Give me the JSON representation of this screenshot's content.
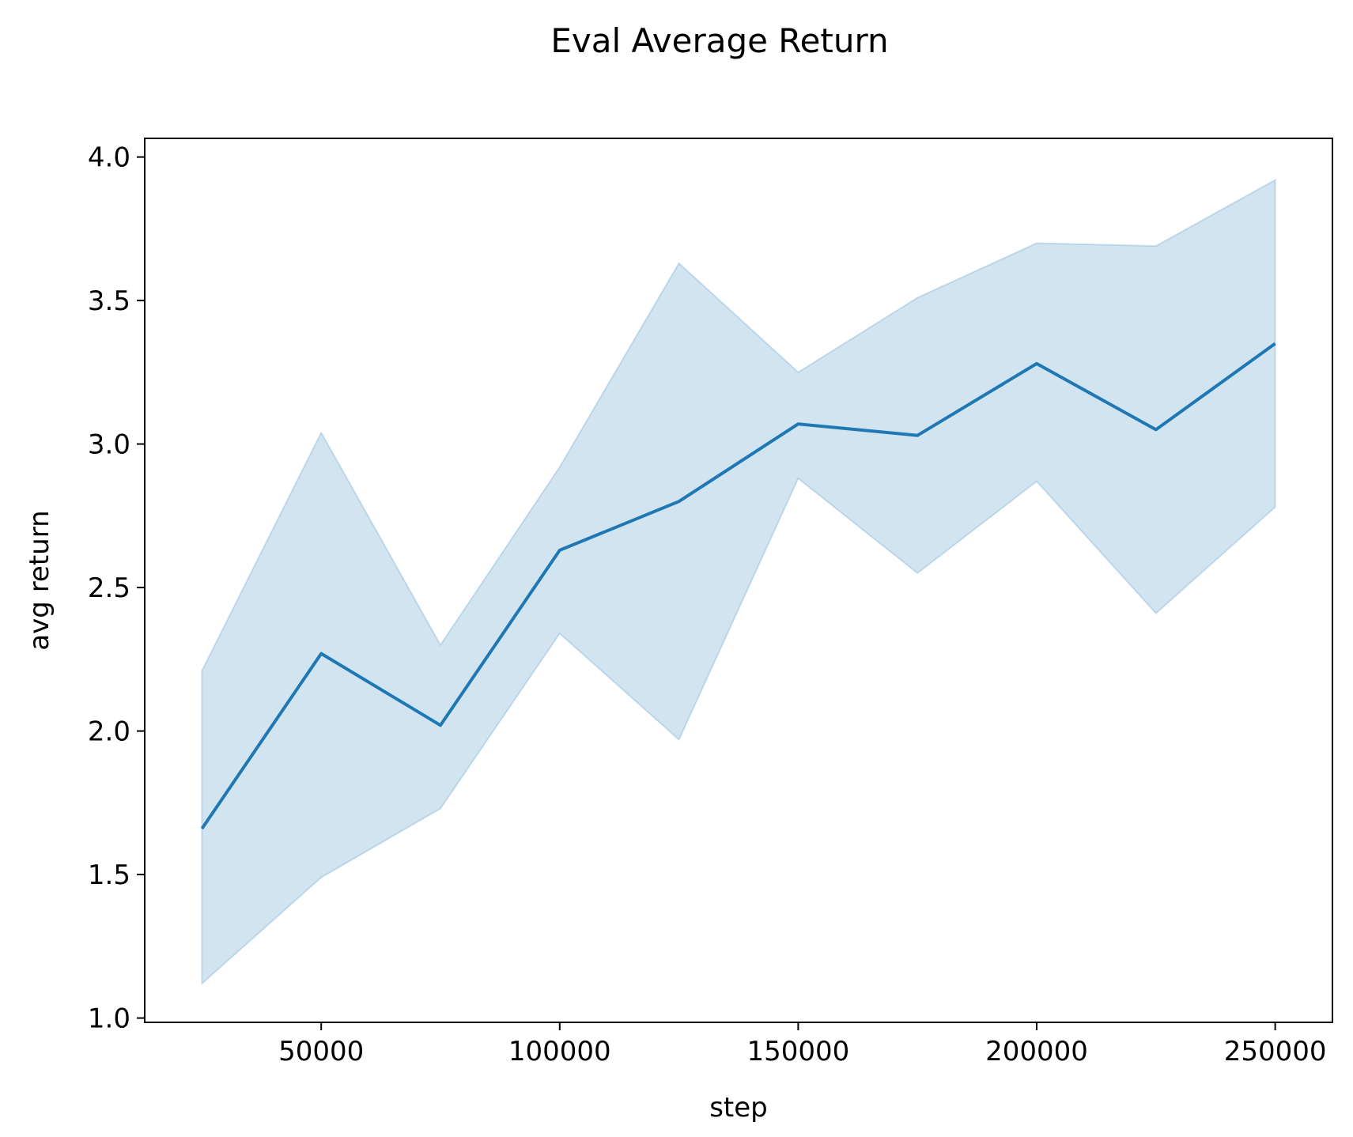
{
  "chart_data": {
    "type": "line",
    "title": "Eval Average Return",
    "xlabel": "step",
    "ylabel": "avg return",
    "xlim": [
      13000,
      262000
    ],
    "ylim": [
      0.985,
      4.065
    ],
    "x_ticks": [
      50000,
      100000,
      150000,
      200000,
      250000
    ],
    "x_tick_labels": [
      "50000",
      "100000",
      "150000",
      "200000",
      "250000"
    ],
    "y_ticks": [
      1.0,
      1.5,
      2.0,
      2.5,
      3.0,
      3.5,
      4.0
    ],
    "y_tick_labels": [
      "1.0",
      "1.5",
      "2.0",
      "2.5",
      "3.0",
      "3.5",
      "4.0"
    ],
    "grid": false,
    "series": [
      {
        "name": "avg return",
        "x": [
          25000,
          50000,
          75000,
          100000,
          125000,
          150000,
          175000,
          200000,
          225000,
          250000
        ],
        "values": [
          1.66,
          2.27,
          2.02,
          2.63,
          2.8,
          3.07,
          3.03,
          3.28,
          3.05,
          3.35
        ],
        "ci_lower": [
          1.12,
          1.49,
          1.73,
          2.34,
          1.97,
          2.88,
          2.55,
          2.87,
          2.41,
          2.78
        ],
        "ci_upper": [
          2.21,
          3.04,
          2.3,
          2.92,
          3.63,
          3.25,
          3.51,
          3.7,
          3.69,
          3.92
        ]
      }
    ],
    "colors": {
      "line": "#1f77b4",
      "band": "#1f77b4"
    }
  }
}
